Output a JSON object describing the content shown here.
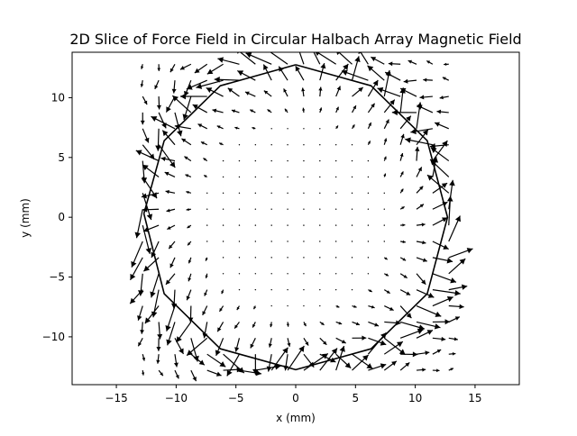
{
  "chart_data": {
    "type": "quiver",
    "title": "2D Slice of Force Field in Circular Halbach Array Magnetic Field",
    "xlabel": "x (mm)",
    "ylabel": "y (mm)",
    "xlim": [
      -18.7,
      18.7
    ],
    "ylim": [
      -14.0,
      13.8
    ],
    "xticks": [
      -15,
      -10,
      -5,
      0,
      5,
      10,
      15
    ],
    "xtick_labels": [
      "−15",
      "−10",
      "−5",
      "0",
      "5",
      "10",
      "15"
    ],
    "yticks": [
      -10,
      -5,
      0,
      5,
      10
    ],
    "ytick_labels": [
      "−10",
      "−5",
      "0",
      "5",
      "10"
    ],
    "grid": false,
    "grid_x": {
      "start": -12.8,
      "stop": 12.8,
      "count": 20
    },
    "grid_y": {
      "start": -12.8,
      "stop": 12.8,
      "count": 20
    },
    "arrow_color": "#000000",
    "outline": [
      [
        0.0,
        12.75
      ],
      [
        6.3,
        11.0
      ],
      [
        11.0,
        6.4
      ],
      [
        12.7,
        0.0
      ],
      [
        11.0,
        -6.4
      ],
      [
        6.3,
        -11.0
      ],
      [
        0.0,
        -12.75
      ],
      [
        -6.3,
        -11.0
      ],
      [
        -11.0,
        -6.4
      ],
      [
        -12.7,
        0.3
      ],
      [
        -11.0,
        6.4
      ],
      [
        -6.3,
        11.0
      ],
      [
        0.0,
        12.75
      ]
    ],
    "outline_color": "#000000"
  }
}
